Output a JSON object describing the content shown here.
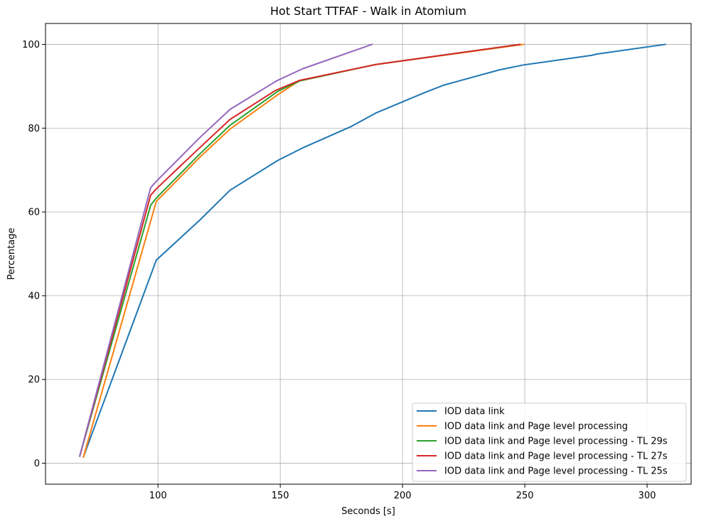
{
  "chart_data": {
    "type": "line",
    "title": "Hot Start TTFAF - Walk in Atomium",
    "xlabel": "Seconds [s]",
    "ylabel": "Percentage",
    "xlim": [
      54,
      318
    ],
    "ylim": [
      -5,
      105
    ],
    "xticks": [
      100,
      150,
      200,
      250,
      300
    ],
    "yticks": [
      0,
      20,
      40,
      60,
      80,
      100
    ],
    "grid": true,
    "legend_position": "lower-right",
    "series": [
      {
        "name": "IOD data link",
        "color": "#1f77b4",
        "points": [
          [
            69.5,
            1.5
          ],
          [
            99.3,
            48.5
          ],
          [
            117,
            58
          ],
          [
            129.5,
            65.2
          ],
          [
            149,
            72.3
          ],
          [
            159.2,
            75.3
          ],
          [
            179,
            80.4
          ],
          [
            189,
            83.6
          ],
          [
            209.5,
            88.6
          ],
          [
            217,
            90.3
          ],
          [
            239.5,
            93.9
          ],
          [
            249.5,
            95.1
          ],
          [
            277.5,
            97.4
          ],
          [
            279.5,
            97.7
          ],
          [
            307.5,
            100
          ]
        ]
      },
      {
        "name": "IOD data link and Page level processing",
        "color": "#ff7f0e",
        "points": [
          [
            69.5,
            1.5
          ],
          [
            99.3,
            62.5
          ],
          [
            117,
            73
          ],
          [
            129.5,
            79.8
          ],
          [
            149,
            88
          ],
          [
            157.8,
            91.3
          ],
          [
            189,
            95.2
          ],
          [
            249.5,
            100
          ]
        ]
      },
      {
        "name": "IOD data link and Page level processing - TL 29s",
        "color": "#2ca02c",
        "points": [
          [
            68,
            1.7
          ],
          [
            97,
            61.6
          ],
          [
            99.3,
            63.3
          ],
          [
            117,
            73.8
          ],
          [
            129.5,
            80.7
          ],
          [
            149,
            88.8
          ],
          [
            158,
            91.3
          ],
          [
            189,
            95.2
          ],
          [
            248,
            100
          ]
        ]
      },
      {
        "name": "IOD data link and Page level processing - TL 27s",
        "color": "#d62728",
        "points": [
          [
            68,
            1.7
          ],
          [
            97,
            64
          ],
          [
            99.3,
            65.5
          ],
          [
            117,
            75.3
          ],
          [
            129.5,
            82.1
          ],
          [
            148,
            89
          ],
          [
            157.8,
            91.4
          ],
          [
            189,
            95.2
          ],
          [
            248,
            100
          ]
        ]
      },
      {
        "name": "IOD data link and Page level processing - TL 25s",
        "color": "#9467bd",
        "points": [
          [
            68,
            1.7
          ],
          [
            97,
            65.8
          ],
          [
            99.3,
            67.3
          ],
          [
            117,
            77.7
          ],
          [
            129.5,
            84.5
          ],
          [
            148.5,
            91.3
          ],
          [
            159.2,
            94.2
          ],
          [
            187.5,
            100
          ]
        ]
      }
    ]
  }
}
